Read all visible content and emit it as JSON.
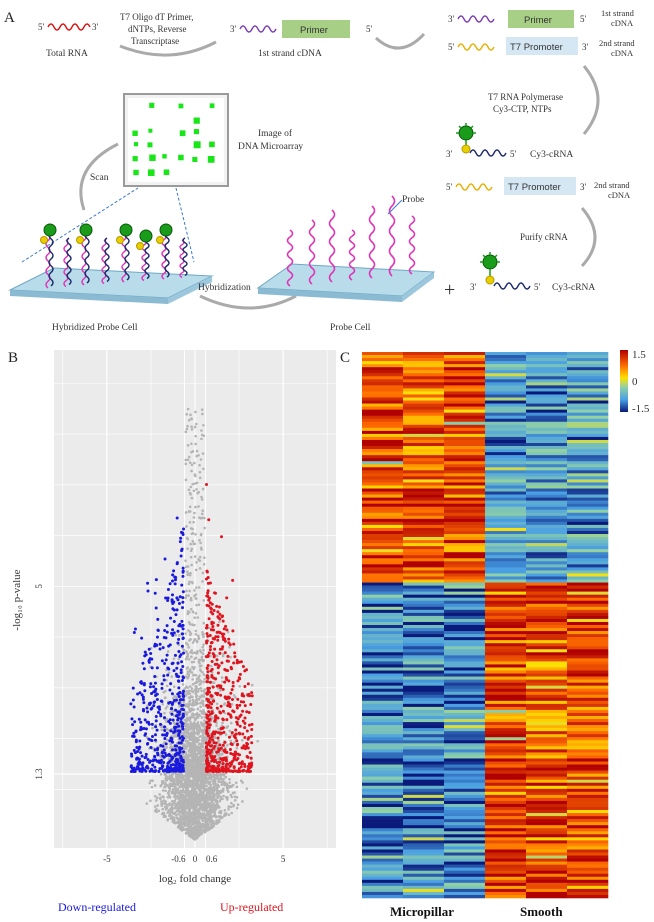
{
  "panel_a": {
    "letter": "A",
    "prime5": "5'",
    "prime3": "3'",
    "total_rna": "Total RNA",
    "rt_line1": "T7 Oligo dT Primer,",
    "rt_line2": "dNTPs, Reverse",
    "rt_line3": "Transcriptase",
    "primer": "Primer",
    "t7_promoter": "T7 Promoter",
    "first_strand_cdna": "1st strand cDNA",
    "first_strand_line1": "1st strand",
    "first_strand_line2": "cDNA",
    "second_strand_line1": "2nd strand",
    "second_strand_line2": "cDNA",
    "ivt_line1": "T7 RNA Polymerase",
    "ivt_line2": "Cy3-CTP, NTPs",
    "cy3_crna": "Cy3-cRNA",
    "purify_crna": "Purify cRNA",
    "plus": "+",
    "image_line1": "Image of",
    "image_line2": "DNA Microarray",
    "scan": "Scan",
    "probe": "Probe",
    "hybridization": "Hybridization",
    "hybridized_probe_cell": "Hybridized Probe Cell",
    "probe_cell": "Probe Cell"
  },
  "panel_b": {
    "letter": "B",
    "y_axis_label": "-log₁₀ p-value",
    "x_axis_label": "log₂ fold change",
    "down_label": "Down-regulated",
    "up_label": "Up-regulated",
    "colors": {
      "down": "#1a1adf",
      "up": "#e0141e",
      "ns": "#b4b4b4",
      "panel_bg": "#ebebeb",
      "grid": "#ffffff",
      "down_text": "#1a1adf",
      "up_text": "#e0141e"
    }
  },
  "panel_c": {
    "letter": "C",
    "group1": "Micropillar",
    "group2": "Smooth",
    "colors": {
      "high": "#c40000",
      "mid_high": "#ffd200",
      "mid": "#8fd0a6",
      "mid_low": "#5aa9e6",
      "low": "#0a2a8c"
    }
  },
  "chart_data": [
    {
      "type": "scatter",
      "x_ticks": [
        "-5",
        "-0.6",
        "0",
        "0.6",
        "5"
      ],
      "y_ticks": [
        "5",
        "1.3"
      ],
      "xlabel": "log₂ fold change",
      "ylabel": "-log₁₀ p-value",
      "thresholds": {
        "fold_change_log2": [
          -0.6,
          0.6
        ],
        "p_value_neglog10": 1.3
      },
      "series": [
        {
          "name": "Down-regulated",
          "color": "#1a1adf",
          "values_note": "points with log2FC < -0.6 and -log10 p > 1.3"
        },
        {
          "name": "Up-regulated",
          "color": "#e0141e",
          "values_note": "points with log2FC > 0.6 and -log10 p > 1.3"
        }
      ],
      "grid": true
    },
    {
      "type": "heatmap",
      "columns": [
        "Micropillar",
        "Micropillar",
        "Micropillar",
        "Smooth",
        "Smooth",
        "Smooth"
      ],
      "colorbar_ticks": [
        "1.5",
        "0",
        "-1.5"
      ],
      "value_range": [
        -1.5,
        1.5
      ]
    }
  ]
}
